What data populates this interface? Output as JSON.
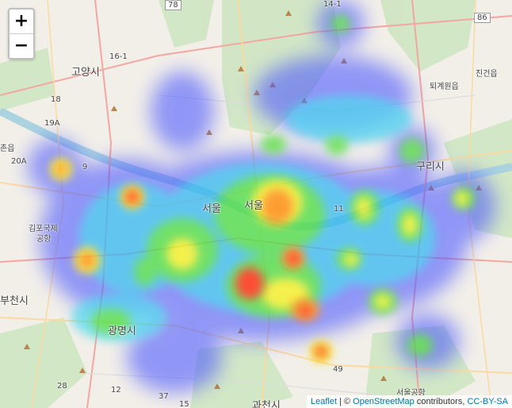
{
  "map": {
    "zoom_in_label": "+",
    "zoom_out_label": "−",
    "attribution": {
      "leaflet": "Leaflet",
      "sep1": " | © ",
      "osm": "OpenStreetMap",
      "contrib": " contributors, ",
      "license": "CC-BY-SA"
    },
    "places": {
      "goyang": "고양시",
      "seoul": "서울",
      "guri": "구리시",
      "gwangmyeong": "광명시",
      "bucheon": "부천시",
      "gimpo_airport_1": "김포국제",
      "gimpo_airport_2": "공항",
      "seoul_airport": "서울공항",
      "gwacheon": "과천시",
      "toegyewon": "퇴계원읍",
      "jingeon": "진건읍",
      "chon": "촌읍",
      "seoul_small": "서울"
    },
    "road_numbers": [
      "78",
      "86",
      "14-1",
      "16-1",
      "19A",
      "20A",
      "18",
      "9",
      "11",
      "49",
      "37",
      "28",
      "12",
      "15"
    ],
    "colors": {
      "base": "#f2efe9",
      "green_area": "#cde5c0",
      "river": "#aad3df",
      "road_major": "#f4a6a0",
      "road_minor": "#fbd9a1"
    }
  }
}
